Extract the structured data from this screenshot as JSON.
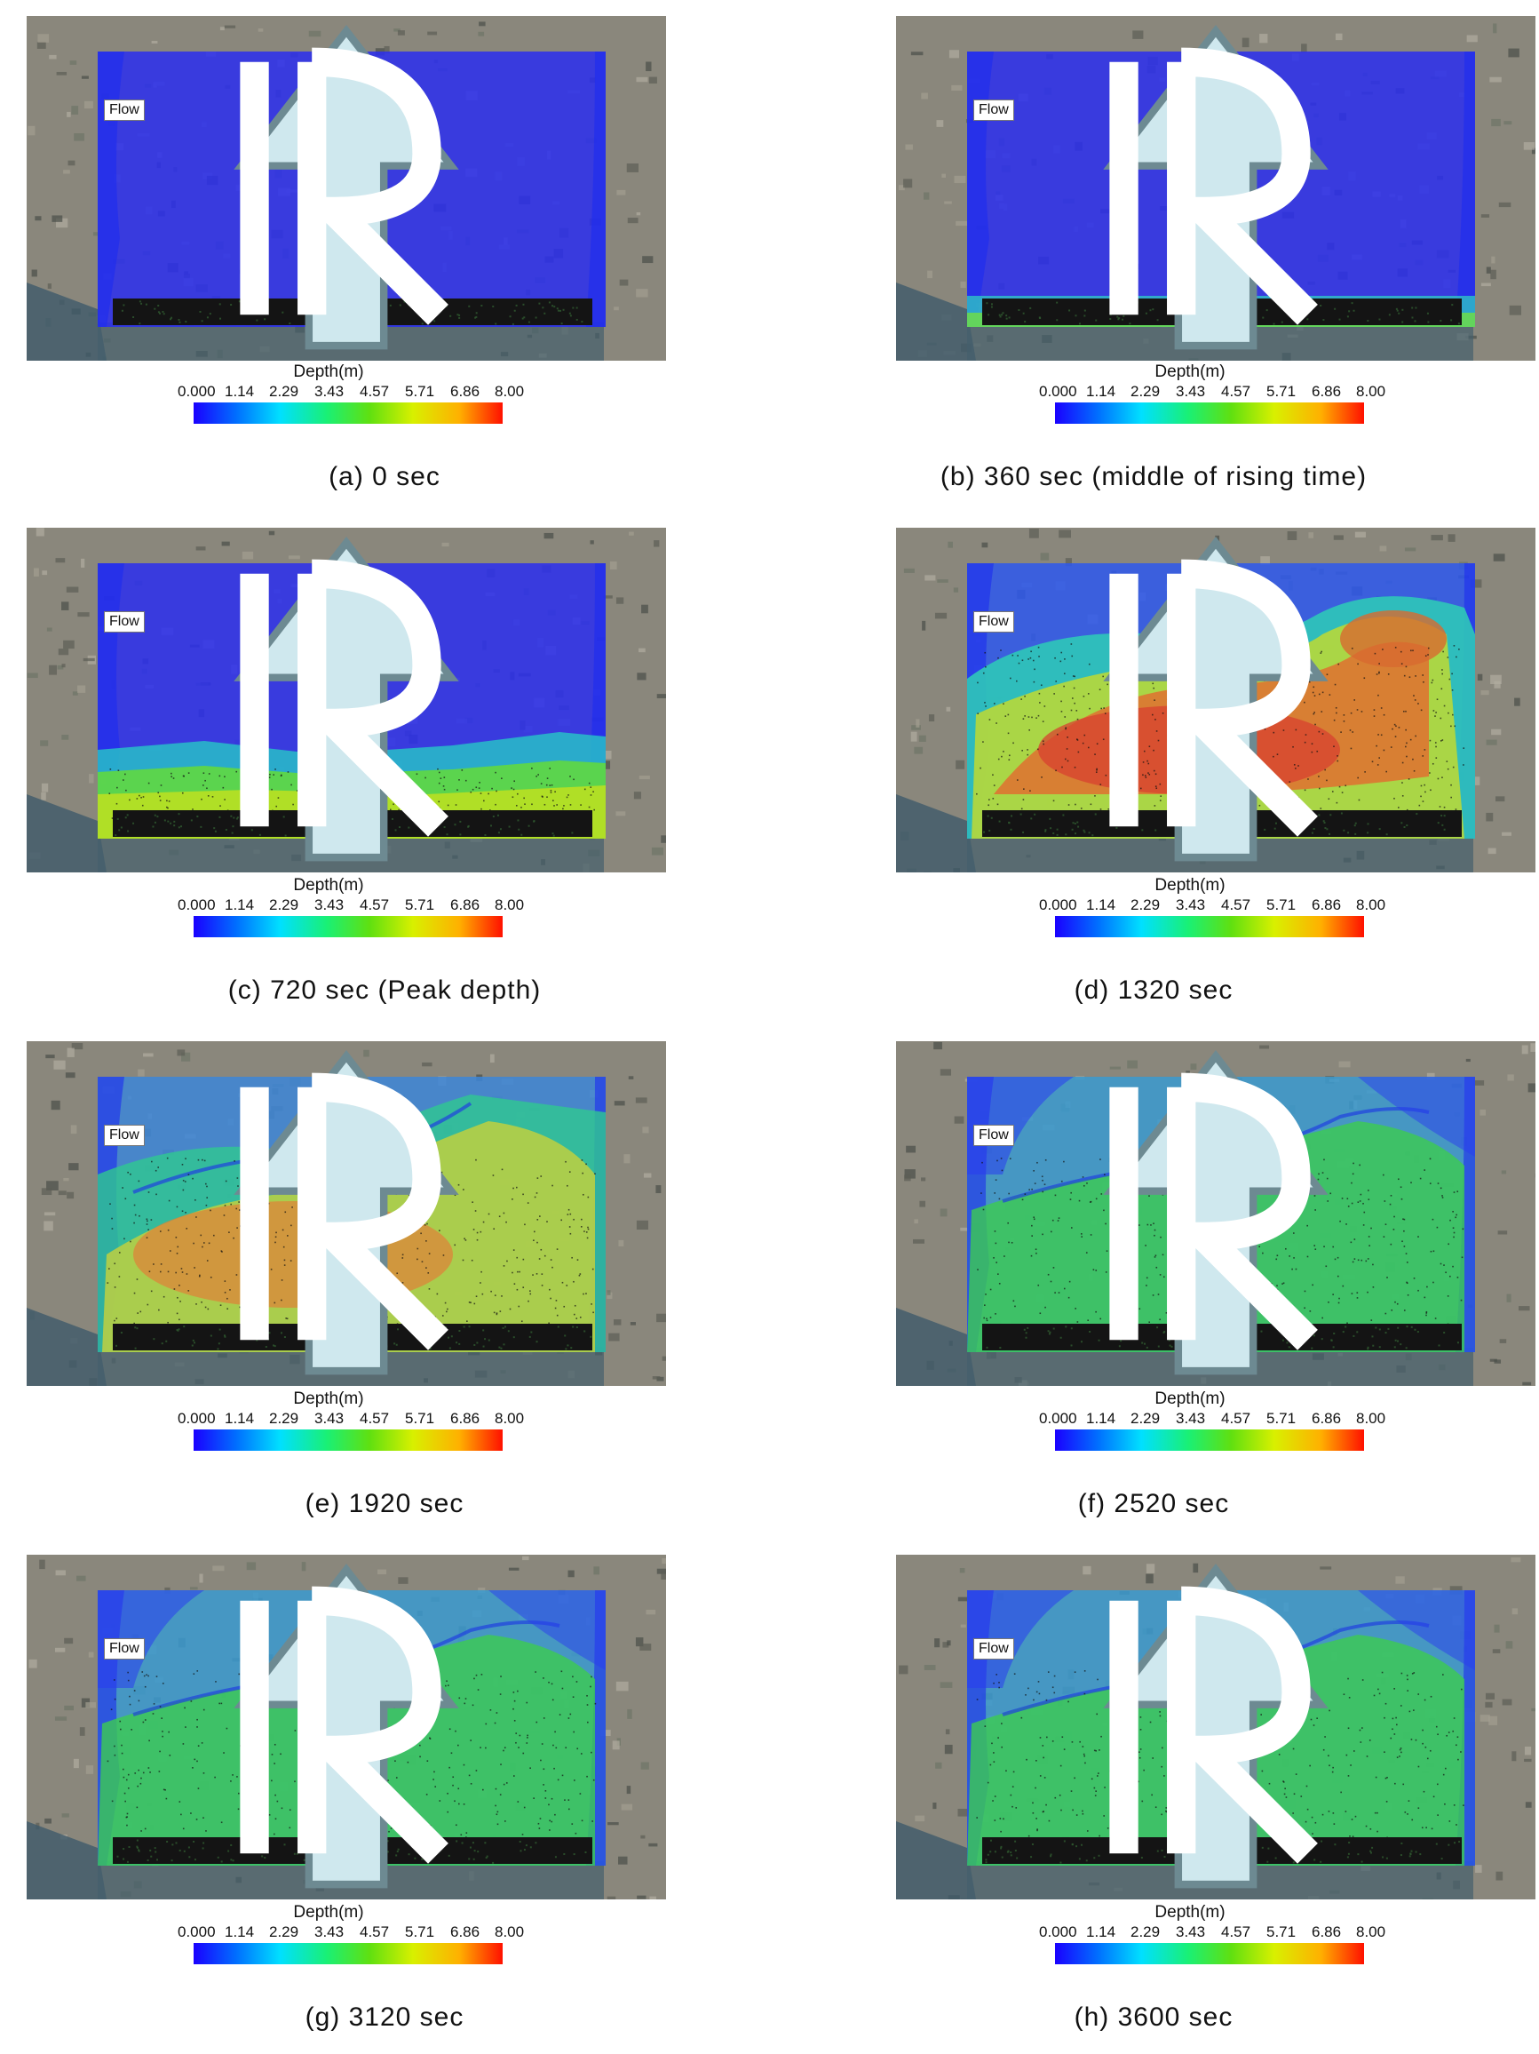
{
  "figure": {
    "panels": [
      {
        "caption": "(a)  0  sec",
        "stage": 0
      },
      {
        "caption": "(b)  360  sec  (middle  of  rising  time)",
        "stage": 1
      },
      {
        "caption": "(c)  720  sec  (Peak  depth)",
        "stage": 2
      },
      {
        "caption": "(d)  1320  sec",
        "stage": 3
      },
      {
        "caption": "(e)  1920  sec",
        "stage": 4
      },
      {
        "caption": "(f)  2520  sec",
        "stage": 5
      },
      {
        "caption": "(g)  3120  sec",
        "stage": 6
      },
      {
        "caption": "(h)  3600  sec",
        "stage": 7
      }
    ],
    "flow_label": "Flow",
    "legend": {
      "title": "Depth(m)",
      "ticks": [
        "0.000",
        "1.14",
        "2.29",
        "3.43",
        "4.57",
        "5.71",
        "6.86",
        "8.00"
      ],
      "colors": [
        "#1a00ff",
        "#0070ff",
        "#00e0ff",
        "#19f076",
        "#60e010",
        "#d8f000",
        "#ffb000",
        "#ff1000"
      ]
    }
  }
}
